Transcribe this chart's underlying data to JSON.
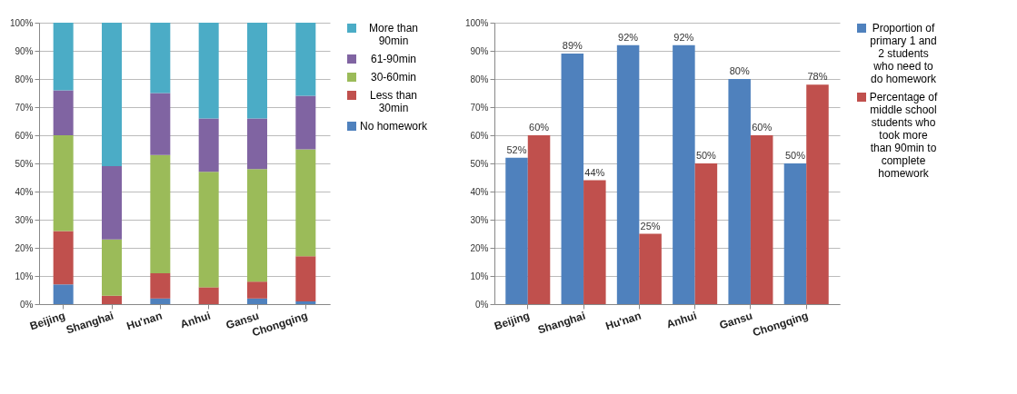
{
  "chart_data": [
    {
      "type": "bar",
      "stacked": true,
      "categories": [
        "Beijing",
        "Shanghai",
        "Hu'nan",
        "Anhui",
        "Gansu",
        "Chongqing"
      ],
      "series": [
        {
          "name": "No homework",
          "color": "#4f81bd",
          "values": [
            7,
            0,
            2,
            0,
            2,
            1
          ]
        },
        {
          "name": "Less than 30min",
          "color": "#c0504d",
          "values": [
            19,
            3,
            9,
            6,
            6,
            16
          ]
        },
        {
          "name": "30-60min",
          "color": "#9bbb59",
          "values": [
            34,
            20,
            42,
            41,
            40,
            38
          ]
        },
        {
          "name": "61-90min",
          "color": "#8064a2",
          "values": [
            16,
            26,
            22,
            19,
            18,
            19
          ]
        },
        {
          "name": "More than 90min",
          "color": "#4bacc6",
          "values": [
            24,
            51,
            25,
            34,
            34,
            26
          ]
        }
      ],
      "ylim": [
        0,
        100
      ],
      "yticks": [
        {
          "value": 0,
          "label": "0%"
        },
        {
          "value": 10,
          "label": "10%"
        },
        {
          "value": 20,
          "label": "20%"
        },
        {
          "value": 30,
          "label": "30%"
        },
        {
          "value": 40,
          "label": "40%"
        },
        {
          "value": 50,
          "label": "50%"
        },
        {
          "value": 60,
          "label": "60%"
        },
        {
          "value": 70,
          "label": "70%"
        },
        {
          "value": 80,
          "label": "80%"
        },
        {
          "value": 90,
          "label": "90%"
        },
        {
          "value": 100,
          "label": "100%"
        }
      ],
      "grid": "y",
      "legend": "right"
    },
    {
      "type": "bar",
      "categories": [
        "Beijing",
        "Shanghai",
        "Hu'nan",
        "Anhui",
        "Gansu",
        "Chongqing"
      ],
      "series": [
        {
          "name": "Proportion of primary 1 and 2 students who need to do homework",
          "color": "#4f81bd",
          "values": [
            52,
            89,
            92,
            92,
            80,
            50
          ],
          "value_labels": [
            "52%",
            "89%",
            "92%",
            "92%",
            "80%",
            "50%"
          ]
        },
        {
          "name": "Percentage of middle school students who took more than 90min to complete homework",
          "color": "#c0504d",
          "values": [
            60,
            44,
            25,
            50,
            60,
            78
          ],
          "value_labels": [
            "60%",
            "44%",
            "25%",
            "50%",
            "60%",
            "78%"
          ]
        }
      ],
      "ylim": [
        0,
        100
      ],
      "yticks": [
        {
          "value": 0,
          "label": "0%"
        },
        {
          "value": 10,
          "label": "10%"
        },
        {
          "value": 20,
          "label": "20%"
        },
        {
          "value": 30,
          "label": "30%"
        },
        {
          "value": 40,
          "label": "40%"
        },
        {
          "value": 50,
          "label": "50%"
        },
        {
          "value": 60,
          "label": "60%"
        },
        {
          "value": 70,
          "label": "70%"
        },
        {
          "value": 80,
          "label": "80%"
        },
        {
          "value": 90,
          "label": "90%"
        },
        {
          "value": 100,
          "label": "100%"
        }
      ],
      "grid": "y",
      "legend": "right"
    }
  ]
}
